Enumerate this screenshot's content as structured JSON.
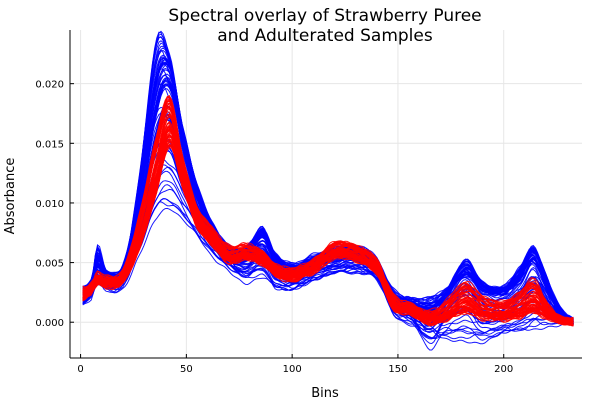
{
  "chart_data": {
    "type": "line",
    "title_lines": [
      "Spectral overlay of Strawberry Puree",
      "and Adulterated Samples"
    ],
    "xlabel": "Bins",
    "ylabel": "Absorbance",
    "xlim": [
      -5,
      237
    ],
    "ylim": [
      -0.003,
      0.0245
    ],
    "x_ticks": [
      0,
      50,
      100,
      150,
      200
    ],
    "x_tick_labels": [
      "0",
      "50",
      "100",
      "150",
      "200"
    ],
    "y_ticks": [
      0.0,
      0.005,
      0.01,
      0.015,
      0.02
    ],
    "y_tick_labels": [
      "0.000",
      "0.005",
      "0.010",
      "0.015",
      "0.020"
    ],
    "grid": true,
    "legend": "none",
    "series": [
      {
        "group": "strawberry puree",
        "color": "#0000ff",
        "x": [
          1,
          5,
          8,
          12,
          20,
          28,
          36,
          42,
          48,
          55,
          62,
          70,
          78,
          86,
          92,
          100,
          110,
          120,
          130,
          140,
          148,
          156,
          165,
          172,
          182,
          190,
          200,
          208,
          214,
          220,
          226,
          233
        ],
        "variants": [
          {
            "y": [
              0.0025,
              0.0032,
              0.0048,
              0.0037,
              0.004,
              0.009,
              0.018,
              0.02,
              0.015,
              0.0105,
              0.0078,
              0.0058,
              0.0055,
              0.0072,
              0.0052,
              0.0042,
              0.005,
              0.0055,
              0.0057,
              0.0048,
              0.0025,
              0.0018,
              0.0018,
              0.0025,
              0.004,
              0.0028,
              0.0025,
              0.0035,
              0.0052,
              0.003,
              0.001,
              0.0001
            ]
          },
          {
            "y": [
              0.0022,
              0.003,
              0.0062,
              0.004,
              0.0042,
              0.0125,
              0.0235,
              0.0222,
              0.0165,
              0.0115,
              0.0082,
              0.006,
              0.0058,
              0.0078,
              0.0054,
              0.0046,
              0.0053,
              0.0058,
              0.006,
              0.005,
              0.002,
              0.0015,
              0.0012,
              0.002,
              0.0044,
              0.003,
              0.0026,
              0.004,
              0.0062,
              0.0035,
              0.0012,
              0.0001
            ]
          },
          {
            "y": [
              0.0018,
              0.0024,
              0.004,
              0.003,
              0.0034,
              0.007,
              0.0105,
              0.011,
              0.01,
              0.008,
              0.0064,
              0.005,
              0.004,
              0.0046,
              0.0034,
              0.003,
              0.0038,
              0.0042,
              0.0044,
              0.0038,
              0.001,
              0.0002,
              -0.002,
              -0.0005,
              0.0005,
              -0.001,
              -0.0005,
              0.0,
              0.0005,
              0.0003,
              0.0001,
              0.0
            ]
          },
          {
            "y": [
              0.0015,
              0.002,
              0.0035,
              0.0027,
              0.003,
              0.006,
              0.009,
              0.0095,
              0.0088,
              0.0072,
              0.0058,
              0.0046,
              0.0035,
              0.004,
              0.003,
              0.0028,
              0.0035,
              0.004,
              0.0042,
              0.0036,
              0.0008,
              0.0,
              -0.0008,
              -0.0012,
              -0.0015,
              -0.0015,
              -0.001,
              -0.0008,
              -0.0005,
              -0.0002,
              0.0,
              0.0
            ]
          },
          {
            "y": [
              0.0028,
              0.0034,
              0.0055,
              0.0042,
              0.0046,
              0.011,
              0.02,
              0.0215,
              0.016,
              0.0112,
              0.008,
              0.0062,
              0.006,
              0.0076,
              0.0056,
              0.0048,
              0.0055,
              0.006,
              0.0062,
              0.0052,
              0.0022,
              0.0016,
              0.001,
              0.0022,
              0.005,
              0.0032,
              0.0028,
              0.0045,
              0.006,
              0.0038,
              0.0012,
              0.0001
            ]
          }
        ]
      },
      {
        "group": "adulterated samples",
        "color": "#ff0000",
        "x": [
          1,
          5,
          8,
          12,
          20,
          28,
          36,
          42,
          48,
          55,
          62,
          70,
          78,
          86,
          92,
          100,
          110,
          120,
          130,
          140,
          148,
          156,
          165,
          172,
          182,
          190,
          200,
          208,
          214,
          220,
          226,
          233
        ],
        "variants": [
          {
            "y": [
              0.0025,
              0.003,
              0.0038,
              0.0035,
              0.004,
              0.008,
              0.014,
              0.018,
              0.013,
              0.009,
              0.0075,
              0.0058,
              0.006,
              0.0055,
              0.0045,
              0.004,
              0.0048,
              0.0062,
              0.006,
              0.0048,
              0.0018,
              0.0012,
              0.0005,
              0.001,
              0.0025,
              0.0015,
              0.0012,
              0.0018,
              0.0025,
              0.0012,
              0.0003,
              0.0001
            ]
          },
          {
            "y": [
              0.0022,
              0.0028,
              0.0035,
              0.0033,
              0.0037,
              0.007,
              0.012,
              0.016,
              0.0122,
              0.0085,
              0.007,
              0.0054,
              0.0056,
              0.0052,
              0.0042,
              0.0038,
              0.0045,
              0.0058,
              0.0056,
              0.0044,
              0.0014,
              0.001,
              0.0002,
              0.0005,
              0.0015,
              0.0008,
              0.0006,
              0.001,
              0.0015,
              0.0008,
              0.0002,
              0.0
            ]
          },
          {
            "y": [
              0.0028,
              0.0032,
              0.004,
              0.0037,
              0.0043,
              0.009,
              0.0155,
              0.0188,
              0.0138,
              0.0095,
              0.0078,
              0.0062,
              0.0064,
              0.0058,
              0.0048,
              0.0043,
              0.0051,
              0.0066,
              0.0064,
              0.0052,
              0.0021,
              0.0015,
              0.0008,
              0.0015,
              0.0032,
              0.002,
              0.0016,
              0.0024,
              0.0035,
              0.0016,
              0.0004,
              0.0001
            ]
          },
          {
            "y": [
              0.002,
              0.0026,
              0.0033,
              0.0031,
              0.0035,
              0.0065,
              0.011,
              0.015,
              0.0115,
              0.0082,
              0.0067,
              0.0052,
              0.0054,
              0.005,
              0.0041,
              0.0036,
              0.0043,
              0.0055,
              0.0053,
              0.0042,
              0.0012,
              0.0008,
              0.0,
              0.0002,
              0.001,
              0.0004,
              0.0003,
              0.0006,
              0.001,
              0.0005,
              0.0001,
              0.0
            ]
          }
        ]
      }
    ]
  }
}
